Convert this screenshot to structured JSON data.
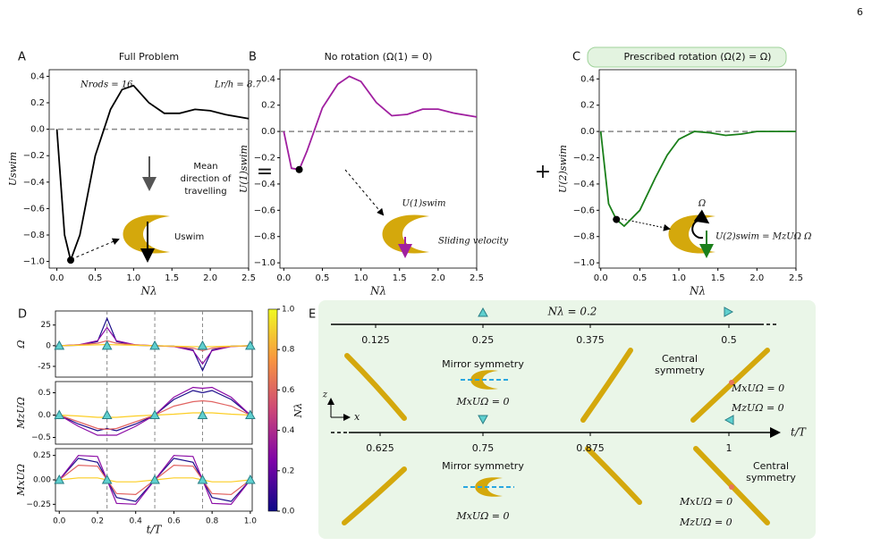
{
  "page_number": "6",
  "panel_labels": [
    "A",
    "B",
    "C",
    "D",
    "E"
  ],
  "chart_data": [
    {
      "type": "line",
      "title": "Full Problem",
      "x_label": "Nλ",
      "y_label": "Uswim",
      "x": [
        0,
        0.1,
        0.18,
        0.3,
        0.5,
        0.7,
        0.85,
        1.0,
        1.2,
        1.4,
        1.6,
        1.8,
        2.0,
        2.2,
        2.5
      ],
      "series": [
        {
          "color": "#000000",
          "values": [
            0,
            -0.8,
            -0.99,
            -0.8,
            -0.2,
            0.15,
            0.3,
            0.33,
            0.2,
            0.12,
            0.12,
            0.15,
            0.14,
            0.11,
            0.08
          ]
        }
      ],
      "points": [
        {
          "x": 0.18,
          "y": -0.99
        }
      ],
      "hline": 0,
      "xlim": [
        -0.1,
        2.5
      ],
      "ylim": [
        -1.05,
        0.45
      ],
      "xticks": [
        {
          "value": 0,
          "label": "0.0"
        },
        0.5,
        {
          "value": 1,
          "label": "1.0"
        },
        1.5,
        {
          "value": 2,
          "label": "2.0"
        },
        2.5
      ],
      "yticks": [
        0.4,
        0.2,
        {
          "value": 0,
          "label": "0.0"
        },
        {
          "value": -0.2,
          "label": "−0.2"
        },
        {
          "value": -0.4,
          "label": "−0.4"
        },
        {
          "value": -0.6,
          "label": "−0.6"
        },
        {
          "value": -0.8,
          "label": "−0.8"
        },
        {
          "value": -1.0,
          "label": "−1.0"
        }
      ],
      "annotations": [
        "Nrods = 16",
        "Lr/h = 8.7",
        "Mean",
        "direction of",
        "travelling",
        "Uswim"
      ]
    },
    {
      "type": "line",
      "title": "No rotation (Ω(1) = 0)",
      "title_color": "#a020a0",
      "x_label": "Nλ",
      "y_label": "U(1)swim",
      "x": [
        0,
        0.1,
        0.2,
        0.3,
        0.5,
        0.7,
        0.85,
        1.0,
        1.2,
        1.4,
        1.6,
        1.8,
        2.0,
        2.2,
        2.5
      ],
      "series": [
        {
          "color": "#a020a0",
          "values": [
            0,
            -0.28,
            -0.29,
            -0.15,
            0.18,
            0.36,
            0.42,
            0.38,
            0.22,
            0.12,
            0.13,
            0.17,
            0.17,
            0.14,
            0.11
          ]
        }
      ],
      "points": [
        {
          "x": 0.2,
          "y": -0.29
        }
      ],
      "hline": 0,
      "xlim": [
        -0.05,
        2.5
      ],
      "ylim": [
        -1.04,
        0.47
      ],
      "xticks": [
        {
          "value": 0,
          "label": "0.0"
        },
        0.5,
        {
          "value": 1,
          "label": "1.0"
        },
        1.5,
        {
          "value": 2,
          "label": "2.0"
        },
        2.5
      ],
      "yticks": [
        0.4,
        0.2,
        {
          "value": 0,
          "label": "0.0"
        },
        {
          "value": -0.2,
          "label": "−0.2"
        },
        {
          "value": -0.4,
          "label": "−0.4"
        },
        {
          "value": -0.6,
          "label": "−0.6"
        },
        {
          "value": -0.8,
          "label": "−0.8"
        },
        {
          "value": -1.0,
          "label": "−1.0"
        }
      ],
      "annotations": [
        "U(1)swim",
        "Sliding velocity"
      ]
    },
    {
      "type": "line",
      "title": "Prescribed rotation (Ω(2) = Ω)",
      "title_color": "#2e8b2e",
      "x_label": "Nλ",
      "y_label": "U(2)swim",
      "x": [
        0,
        0.1,
        0.2,
        0.3,
        0.5,
        0.7,
        0.85,
        1.0,
        1.2,
        1.4,
        1.6,
        1.8,
        2.0,
        2.2,
        2.5
      ],
      "series": [
        {
          "color": "#1a7f1a",
          "values": [
            0,
            -0.55,
            -0.67,
            -0.72,
            -0.6,
            -0.35,
            -0.18,
            -0.06,
            0.0,
            -0.01,
            -0.03,
            -0.02,
            0.0,
            0.0,
            0.0
          ]
        }
      ],
      "points": [
        {
          "x": 0.2,
          "y": -0.67
        }
      ],
      "hline": 0,
      "xlim": [
        -0.02,
        2.5
      ],
      "ylim": [
        -1.04,
        0.47
      ],
      "xticks": [
        {
          "value": 0,
          "label": "0.0"
        },
        0.5,
        {
          "value": 1,
          "label": "1.0"
        },
        1.5,
        {
          "value": 2,
          "label": "2.0"
        },
        2.5
      ],
      "yticks": [
        0.4,
        0.2,
        {
          "value": 0,
          "label": "0.0"
        },
        {
          "value": -0.2,
          "label": "−0.2"
        },
        {
          "value": -0.4,
          "label": "−0.4"
        },
        {
          "value": -0.6,
          "label": "−0.6"
        },
        {
          "value": -0.8,
          "label": "−0.8"
        },
        {
          "value": -1.0,
          "label": "−1.0"
        }
      ],
      "annotations": [
        "Ω",
        "U(2)swim = MzUΩ Ω"
      ]
    },
    {
      "type": "line",
      "y_label": "Ω",
      "x": [
        0,
        0.1,
        0.2,
        0.25,
        0.3,
        0.4,
        0.5,
        0.6,
        0.7,
        0.75,
        0.8,
        0.9,
        1.0
      ],
      "series": [
        {
          "color": "#1b0c8a",
          "values": [
            0,
            0.5,
            5,
            33,
            5,
            0.5,
            0,
            -0.5,
            -5,
            -30,
            -5,
            -0.5,
            0
          ]
        },
        {
          "color": "#8b0aa5",
          "values": [
            0,
            1,
            6,
            22,
            6,
            1,
            0,
            -1,
            -6,
            -22,
            -6,
            -1,
            0
          ]
        },
        {
          "color": "#e16462",
          "values": [
            0,
            1,
            3,
            6,
            3,
            1,
            0,
            -1,
            -3,
            -6,
            -3,
            -1,
            0
          ]
        },
        {
          "color": "#fcce25",
          "values": [
            0,
            0.5,
            1,
            1.5,
            1,
            0.5,
            0,
            -0.5,
            -1,
            -1.5,
            -1,
            -0.5,
            0
          ]
        }
      ],
      "vlines": [
        0.25,
        0.5,
        0.75
      ],
      "markers_x": [
        0,
        0.25,
        0.5,
        0.75,
        1.0
      ],
      "xlim": [
        -0.02,
        1.01
      ],
      "ylim": [
        -38,
        42
      ],
      "yticks": [
        25,
        0,
        -25
      ]
    },
    {
      "type": "line",
      "y_label": "MzUΩ",
      "x": [
        0,
        0.1,
        0.2,
        0.25,
        0.3,
        0.4,
        0.5,
        0.6,
        0.7,
        0.75,
        0.8,
        0.9,
        1.0
      ],
      "series": [
        {
          "color": "#1b0c8a",
          "values": [
            0,
            -0.2,
            -0.35,
            -0.3,
            -0.35,
            -0.2,
            0,
            0.35,
            0.55,
            0.5,
            0.55,
            0.35,
            0
          ]
        },
        {
          "color": "#8b0aa5",
          "values": [
            0,
            -0.25,
            -0.45,
            -0.45,
            -0.45,
            -0.25,
            0,
            0.4,
            0.62,
            0.6,
            0.62,
            0.4,
            0
          ]
        },
        {
          "color": "#e16462",
          "values": [
            0,
            -0.15,
            -0.3,
            -0.32,
            -0.3,
            -0.15,
            0,
            0.2,
            0.3,
            0.32,
            0.3,
            0.2,
            0
          ]
        },
        {
          "color": "#fcce25",
          "values": [
            0,
            -0.02,
            -0.05,
            -0.05,
            -0.05,
            -0.02,
            0,
            0.02,
            0.05,
            0.05,
            0.05,
            0.02,
            0
          ]
        }
      ],
      "vlines": [
        0.25,
        0.5,
        0.75
      ],
      "markers_x": [
        0,
        0.25,
        0.5,
        0.75,
        1.0
      ],
      "xlim": [
        -0.02,
        1.01
      ],
      "ylim": [
        -0.65,
        0.75
      ],
      "yticks": [
        0.5,
        {
          "value": 0,
          "label": "0.0"
        },
        {
          "value": -0.5,
          "label": "−0.5"
        }
      ]
    },
    {
      "type": "line",
      "y_label": "MxUΩ",
      "x_label": "t/T",
      "x": [
        0,
        0.1,
        0.2,
        0.25,
        0.3,
        0.4,
        0.5,
        0.6,
        0.7,
        0.75,
        0.8,
        0.9,
        1.0
      ],
      "series": [
        {
          "color": "#1b0c8a",
          "values": [
            0,
            0.22,
            0.18,
            0,
            -0.18,
            -0.22,
            0,
            0.22,
            0.18,
            0,
            -0.18,
            -0.22,
            0
          ]
        },
        {
          "color": "#8b0aa5",
          "values": [
            0,
            0.25,
            0.24,
            0,
            -0.24,
            -0.25,
            0,
            0.25,
            0.24,
            0,
            -0.24,
            -0.25,
            0
          ]
        },
        {
          "color": "#e16462",
          "values": [
            0,
            0.15,
            0.14,
            0,
            -0.14,
            -0.15,
            0,
            0.15,
            0.14,
            0,
            -0.14,
            -0.15,
            0
          ]
        },
        {
          "color": "#fcce25",
          "values": [
            0,
            0.02,
            0.02,
            0,
            -0.02,
            -0.02,
            0,
            0.02,
            0.02,
            0,
            -0.02,
            -0.02,
            0
          ]
        }
      ],
      "vlines": [
        0.25,
        0.5,
        0.75
      ],
      "markers_x": [
        0,
        0.25,
        0.5,
        0.75,
        1.0
      ],
      "xlim": [
        -0.02,
        1.01
      ],
      "ylim": [
        -0.32,
        0.32
      ],
      "xticks": [
        {
          "value": 0,
          "label": "0.0"
        },
        0.2,
        0.4,
        0.6,
        0.8,
        {
          "value": 1,
          "label": "1.0"
        }
      ],
      "yticks": [
        0.25,
        {
          "value": 0,
          "label": "0.00"
        },
        {
          "value": -0.25,
          "label": "−0.25"
        }
      ]
    }
  ],
  "colorbar": {
    "label": "Nλ",
    "lim": [
      0,
      1
    ],
    "colors": [
      "#0d0887",
      "#7e03a8",
      "#cc4778",
      "#f89540",
      "#f0f921"
    ],
    "ticks": [
      {
        "value": 0,
        "label": "0.0"
      },
      0.2,
      0.4,
      0.6,
      0.8,
      {
        "value": 1,
        "label": "1.0"
      }
    ]
  },
  "diagram_e": {
    "n_lambda": "Nλ = 0.2",
    "top_ticks": [
      "0.125",
      "0.25",
      "0.375",
      "0.5"
    ],
    "bottom_ticks": [
      "0.625",
      "0.75",
      "0.875",
      "1"
    ],
    "axis_label": "t/T",
    "x_label": "x",
    "z_label": "z",
    "top_notes": [
      "Mirror symmetry",
      "MxUΩ = 0",
      "Central",
      "symmetry",
      "MxUΩ = 0",
      "MzUΩ = 0"
    ],
    "bottom_notes": [
      "Mirror symmetry",
      "MxUΩ = 0",
      "Central",
      "symmetry",
      "MxUΩ = 0",
      "MzUΩ = 0"
    ]
  }
}
